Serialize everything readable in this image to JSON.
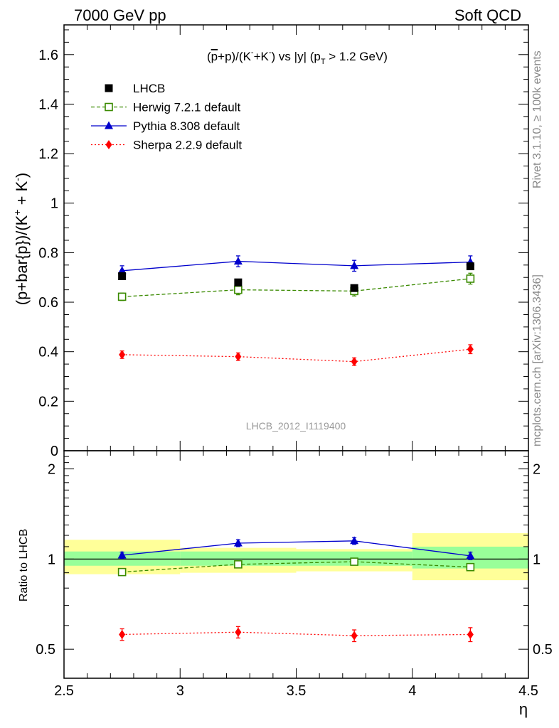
{
  "header": {
    "left": "7000 GeV pp",
    "right": "Soft QCD"
  },
  "side_labels": {
    "rivet": "Rivet 3.1.10, ≥ 100k events",
    "mcplots": "mcplots.cern.ch [arXiv:1306.3436]"
  },
  "analysis_id": "LHCB_2012_I1119400",
  "colors": {
    "data": "#000000",
    "herwig": "#3a8a00",
    "pythia": "#0000cc",
    "sherpa": "#ff0000",
    "band_inner": "#99ff99",
    "band_outer": "#ffff99"
  },
  "chart_data": [
    {
      "type": "scatter",
      "panel": "main",
      "title_parts": {
        "pre": "(",
        "pbar": "p",
        "mid": "+p)/(K",
        "sup1": "-",
        "mid2": "+K",
        "sup2": "-",
        "post": ") vs |y| (p",
        "sub": "T",
        "tail": " > 1.2 GeV)"
      },
      "ylabel": "(p+bar{p})/(K",
      "ylabel_sup1": "+",
      "ylabel_mid": " + K",
      "ylabel_sup2": "-",
      "ylabel_end": ")",
      "xlabel": "η",
      "xlim": [
        2.5,
        4.5
      ],
      "ylim": [
        0,
        1.72
      ],
      "yticks": [
        0,
        0.2,
        0.4,
        0.6,
        0.8,
        1,
        1.2,
        1.4,
        1.6
      ],
      "ytick_labels": [
        "0",
        "0.2",
        "0.4",
        "0.6",
        "0.8",
        "1",
        "1.2",
        "1.4",
        "1.6"
      ],
      "x": [
        2.75,
        3.25,
        3.75,
        4.25
      ],
      "series": [
        {
          "name": "LHCB",
          "key": "data",
          "marker": "square",
          "values": [
            0.705,
            0.68,
            0.657,
            0.745
          ],
          "errors": [
            0.01,
            0.01,
            0.01,
            0.01
          ]
        },
        {
          "name": "Herwig 7.2.1 default",
          "key": "herwig",
          "marker": "open-square",
          "line": "dashed",
          "values": [
            0.622,
            0.65,
            0.645,
            0.695
          ],
          "errors": [
            0.015,
            0.02,
            0.02,
            0.022
          ]
        },
        {
          "name": "Pythia 8.308 default",
          "key": "pythia",
          "marker": "triangle",
          "line": "solid",
          "values": [
            0.727,
            0.765,
            0.747,
            0.762
          ],
          "errors": [
            0.02,
            0.022,
            0.022,
            0.025
          ]
        },
        {
          "name": "Sherpa 2.2.9 default",
          "key": "sherpa",
          "marker": "diamond",
          "line": "dotted",
          "values": [
            0.388,
            0.38,
            0.36,
            0.41
          ],
          "errors": [
            0.015,
            0.015,
            0.015,
            0.018
          ]
        }
      ],
      "legend_position": "top-left"
    },
    {
      "type": "scatter",
      "panel": "ratio",
      "ylabel": "Ratio to LHCB",
      "xlabel": "η",
      "xlim": [
        2.5,
        4.5
      ],
      "ylim": [
        0.4,
        2.3
      ],
      "log_y": true,
      "yticks": [
        0.5,
        1,
        2
      ],
      "ytick_labels": [
        "0.5",
        "1",
        "2"
      ],
      "xticks": [
        2.5,
        3,
        3.5,
        4,
        4.5
      ],
      "xtick_labels": [
        "2.5",
        "3",
        "3.5",
        "4",
        "4.5"
      ],
      "x": [
        2.75,
        3.25,
        3.75,
        4.25
      ],
      "bands": [
        {
          "x0": 2.5,
          "x1": 3.0,
          "inner": [
            0.95,
            1.06
          ],
          "outer": [
            0.89,
            1.16
          ]
        },
        {
          "x0": 3.0,
          "x1": 3.5,
          "inner": [
            0.95,
            1.06
          ],
          "outer": [
            0.9,
            1.09
          ]
        },
        {
          "x0": 3.5,
          "x1": 4.0,
          "inner": [
            0.95,
            1.06
          ],
          "outer": [
            0.91,
            1.08
          ]
        },
        {
          "x0": 4.0,
          "x1": 4.5,
          "inner": [
            0.93,
            1.1
          ],
          "outer": [
            0.85,
            1.22
          ]
        }
      ],
      "series": [
        {
          "name": "Herwig 7.2.1 default",
          "key": "herwig",
          "marker": "open-square",
          "line": "dashed",
          "values": [
            0.905,
            0.96,
            0.98,
            0.94
          ],
          "errors": [
            0.02,
            0.02,
            0.02,
            0.025
          ]
        },
        {
          "name": "Pythia 8.308 default",
          "key": "pythia",
          "marker": "triangle",
          "line": "solid",
          "values": [
            1.03,
            1.13,
            1.15,
            1.025
          ],
          "errors": [
            0.025,
            0.03,
            0.03,
            0.03
          ]
        },
        {
          "name": "Sherpa 2.2.9 default",
          "key": "sherpa",
          "marker": "diamond",
          "line": "dotted",
          "values": [
            0.56,
            0.57,
            0.555,
            0.56
          ],
          "errors": [
            0.025,
            0.025,
            0.025,
            0.03
          ]
        }
      ]
    }
  ]
}
